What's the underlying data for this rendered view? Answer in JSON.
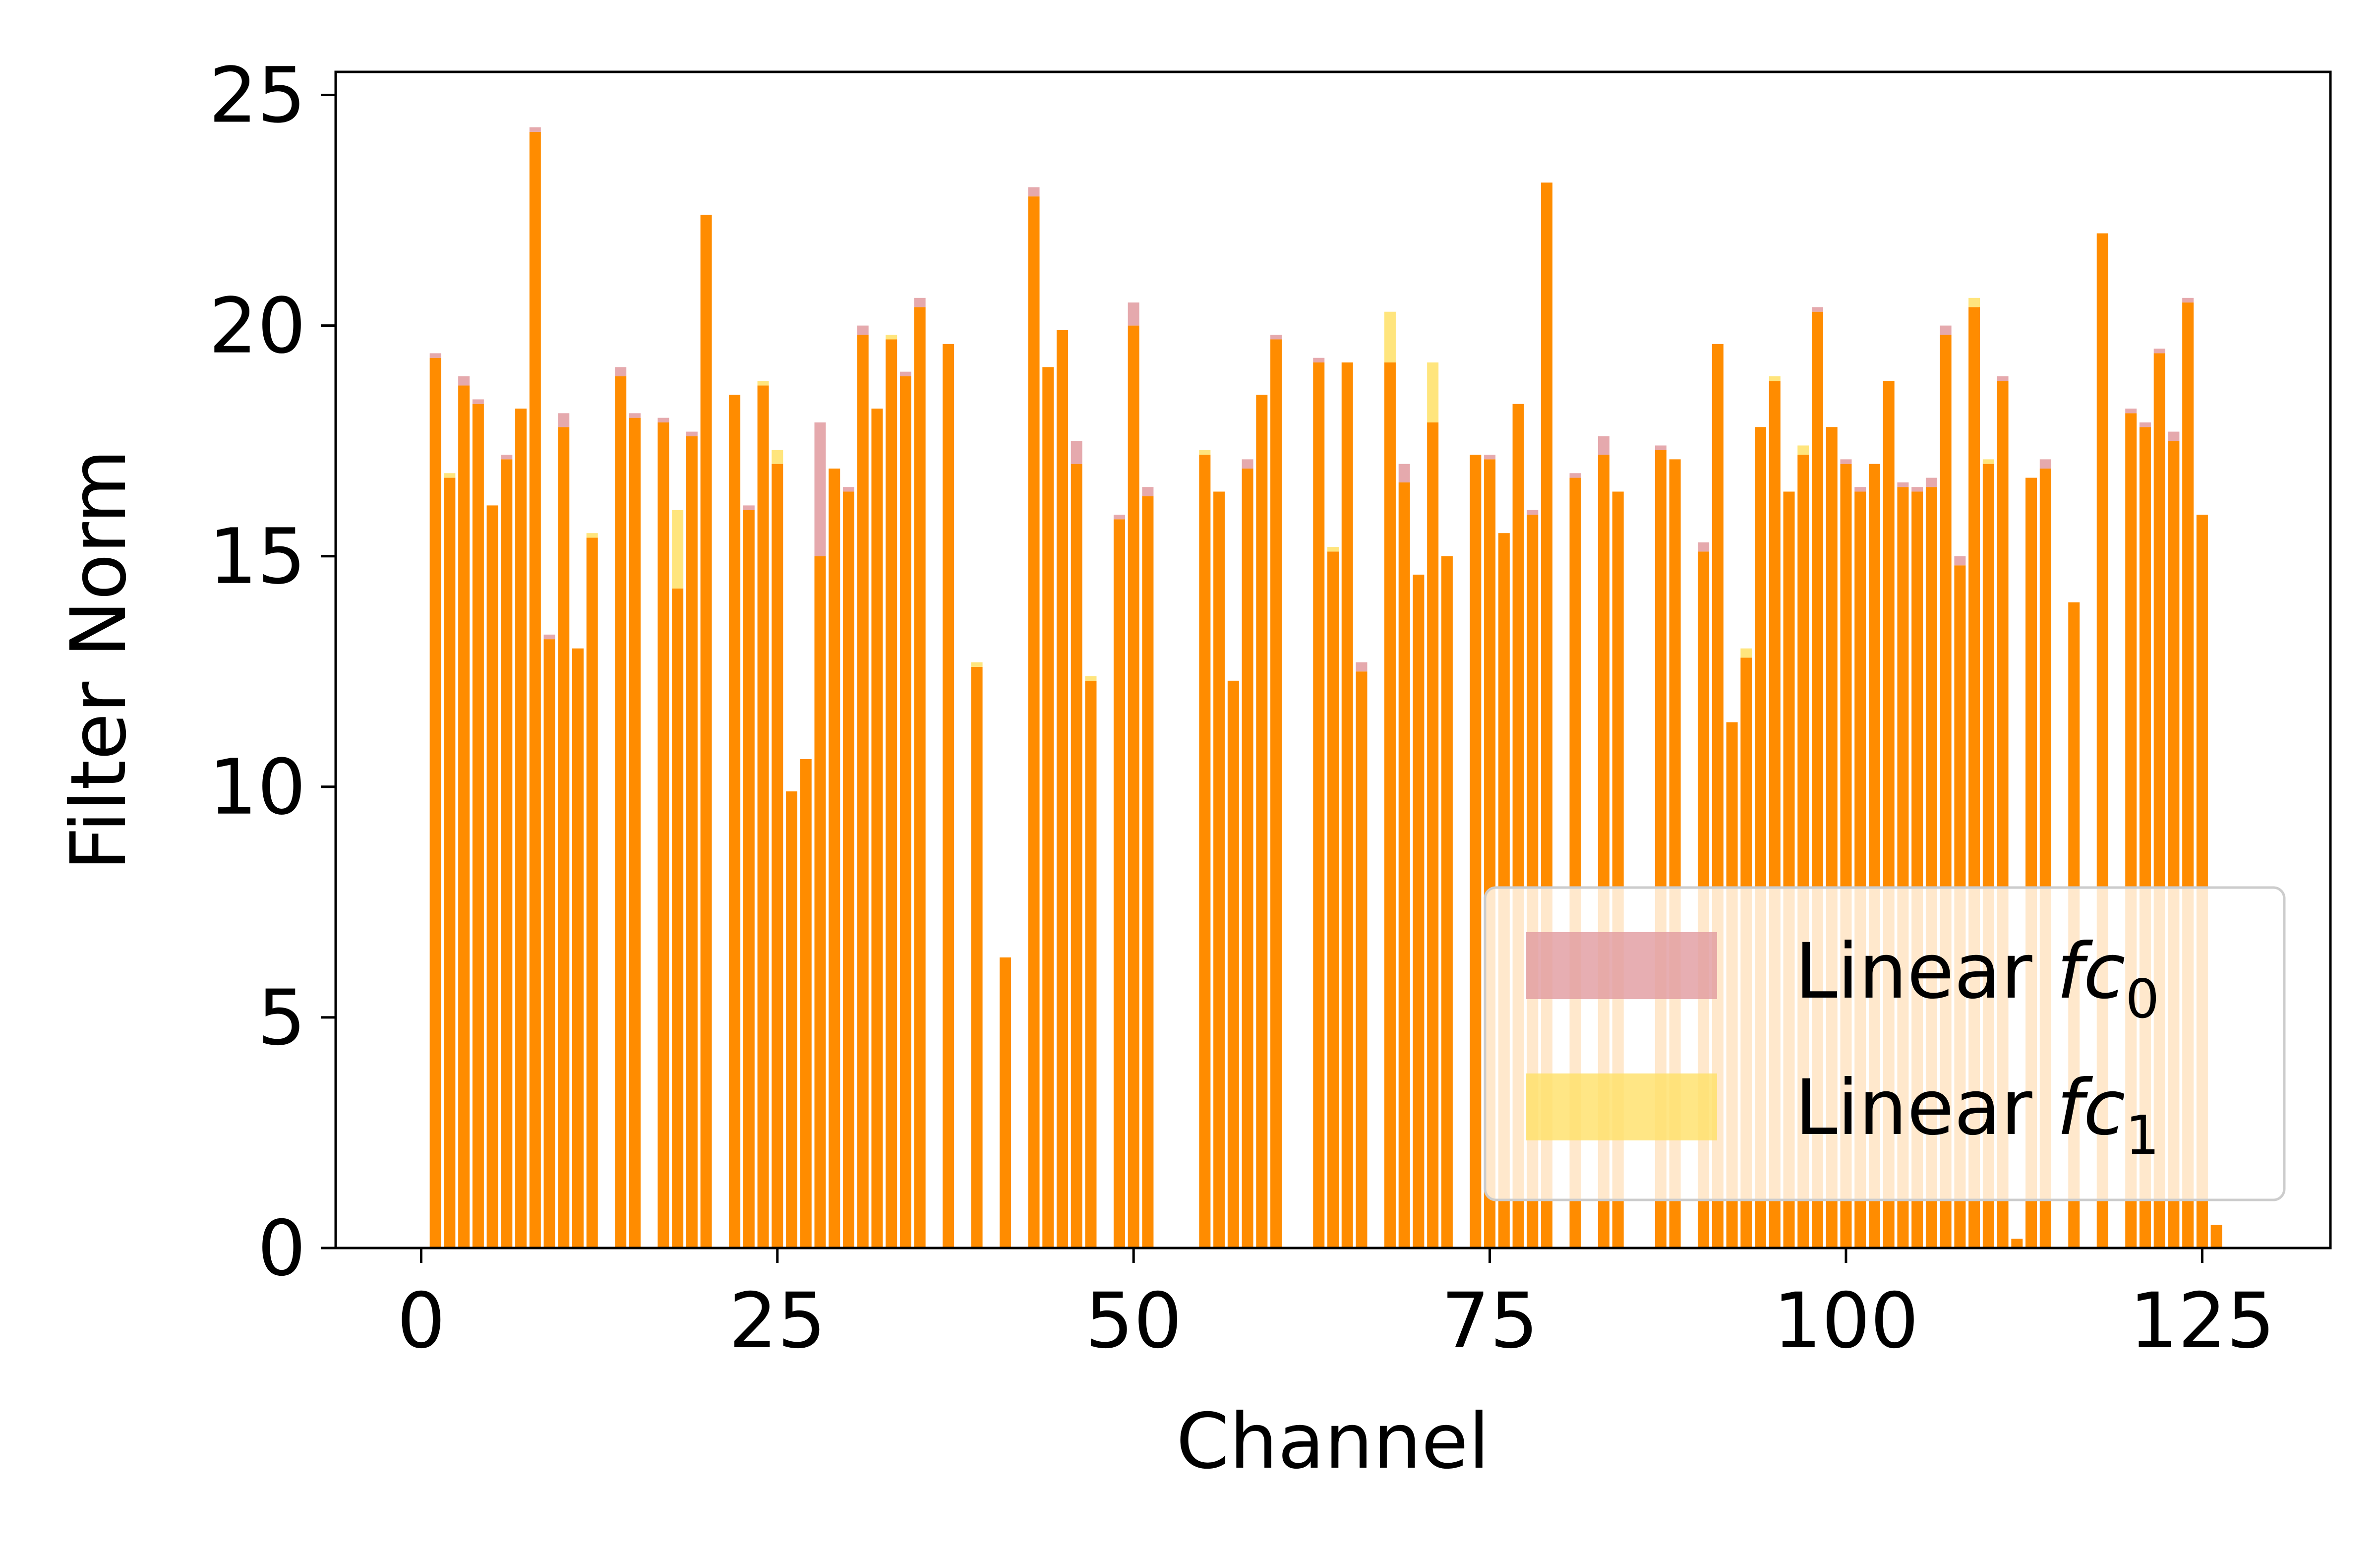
{
  "colors": {
    "fc0": "#e19a9f",
    "fc1": "#ffe066",
    "overlap": "#ff8c00",
    "frame": "#000000",
    "background": "#ffffff"
  },
  "chart_data": {
    "type": "bar",
    "title": "",
    "xlabel": "Channel",
    "ylabel": "Filter Norm",
    "xlim": [
      -6,
      134
    ],
    "ylim": [
      0,
      25.5
    ],
    "x_ticks": [
      0,
      25,
      50,
      75,
      100,
      125
    ],
    "y_ticks": [
      0,
      5,
      10,
      15,
      20,
      25
    ],
    "x_tick_labels": [
      "0",
      "25",
      "50",
      "75",
      "100",
      "125"
    ],
    "y_tick_labels": [
      "0",
      "5",
      "10",
      "15",
      "20",
      "25"
    ],
    "grid": false,
    "legend_position": "lower right",
    "x": [
      0,
      1,
      2,
      3,
      4,
      5,
      6,
      7,
      8,
      9,
      10,
      11,
      12,
      13,
      14,
      15,
      16,
      17,
      18,
      19,
      20,
      21,
      22,
      23,
      24,
      25,
      26,
      27,
      28,
      29,
      30,
      31,
      32,
      33,
      34,
      35,
      36,
      37,
      38,
      39,
      40,
      41,
      42,
      43,
      44,
      45,
      46,
      47,
      48,
      49,
      50,
      51,
      52,
      53,
      54,
      55,
      56,
      57,
      58,
      59,
      60,
      61,
      62,
      63,
      64,
      65,
      66,
      67,
      68,
      69,
      70,
      71,
      72,
      73,
      74,
      75,
      76,
      77,
      78,
      79,
      80,
      81,
      82,
      83,
      84,
      85,
      86,
      87,
      88,
      89,
      90,
      91,
      92,
      93,
      94,
      95,
      96,
      97,
      98,
      99,
      100,
      101,
      102,
      103,
      104,
      105,
      106,
      107,
      108,
      109,
      110,
      111,
      112,
      113,
      114,
      115,
      116,
      117,
      118,
      119,
      120,
      121,
      122,
      123,
      124,
      125,
      126,
      127
    ],
    "series": [
      {
        "name_text": "Linear ",
        "name_math": "fc",
        "name_sub": "0",
        "color": "#e19a9f",
        "values": [
          0,
          19.4,
          16.7,
          18.9,
          18.4,
          16.1,
          17.2,
          18.2,
          24.3,
          13.3,
          18.1,
          13.0,
          15.4,
          0,
          19.1,
          18.1,
          0,
          18.0,
          14.3,
          17.7,
          22.4,
          0,
          18.5,
          16.1,
          18.7,
          17.0,
          9.9,
          10.6,
          17.9,
          16.9,
          16.5,
          20.0,
          18.2,
          19.7,
          19.0,
          20.6,
          0,
          19.6,
          0,
          12.6,
          0,
          6.3,
          0,
          23.0,
          19.1,
          19.9,
          17.5,
          12.3,
          0,
          15.9,
          20.5,
          16.5,
          0,
          0,
          0,
          17.2,
          16.4,
          12.3,
          17.1,
          18.5,
          19.8,
          0,
          0,
          19.3,
          15.1,
          19.2,
          12.7,
          0,
          19.2,
          17.0,
          14.6,
          17.9,
          15.0,
          0,
          17.2,
          17.2,
          15.5,
          18.3,
          16.0,
          23.1,
          0,
          16.8,
          0,
          17.6,
          16.4,
          0,
          0,
          17.4,
          17.1,
          0,
          15.3,
          19.6,
          11.4,
          12.8,
          17.8,
          18.8,
          16.4,
          17.2,
          20.4,
          17.8,
          17.1,
          16.5,
          17.0,
          18.8,
          16.6,
          16.5,
          16.7,
          20.0,
          15.0,
          20.4,
          17.0,
          18.9,
          0.2,
          16.7,
          17.1,
          0,
          14.0,
          0,
          22.0,
          0,
          18.2,
          17.9,
          19.5,
          17.7,
          20.6,
          15.9,
          0.5,
          0
        ]
      },
      {
        "name_text": "Linear ",
        "name_math": "fc",
        "name_sub": "1",
        "color": "#ffe066",
        "values": [
          0,
          19.3,
          16.8,
          18.7,
          18.3,
          16.1,
          17.1,
          18.2,
          24.2,
          13.2,
          17.8,
          13.0,
          15.5,
          0,
          18.9,
          18.0,
          0,
          17.9,
          16.0,
          17.6,
          22.4,
          0,
          18.5,
          16.0,
          18.8,
          17.3,
          9.9,
          10.6,
          15.0,
          16.9,
          16.4,
          19.8,
          18.2,
          19.8,
          18.9,
          20.4,
          0,
          19.6,
          0,
          12.7,
          0,
          6.3,
          0,
          22.8,
          19.1,
          19.9,
          17.0,
          12.4,
          0,
          15.8,
          20.0,
          16.3,
          0,
          0,
          0,
          17.3,
          16.4,
          12.3,
          16.9,
          18.5,
          19.7,
          0,
          0,
          19.2,
          15.2,
          19.2,
          12.5,
          0,
          20.3,
          16.6,
          14.6,
          19.2,
          15.0,
          0,
          17.2,
          17.1,
          15.5,
          18.3,
          15.9,
          23.1,
          0,
          16.7,
          0,
          17.2,
          16.4,
          0,
          0,
          17.3,
          17.1,
          0,
          15.1,
          19.6,
          11.4,
          13.0,
          17.8,
          18.9,
          16.4,
          17.4,
          20.3,
          17.8,
          17.0,
          16.4,
          17.0,
          18.8,
          16.5,
          16.4,
          16.5,
          19.8,
          14.8,
          20.6,
          17.1,
          18.8,
          0.2,
          16.7,
          16.9,
          0,
          14.0,
          0,
          22.0,
          0,
          18.1,
          17.8,
          19.4,
          17.5,
          20.5,
          15.9,
          0.5,
          0
        ]
      }
    ]
  }
}
